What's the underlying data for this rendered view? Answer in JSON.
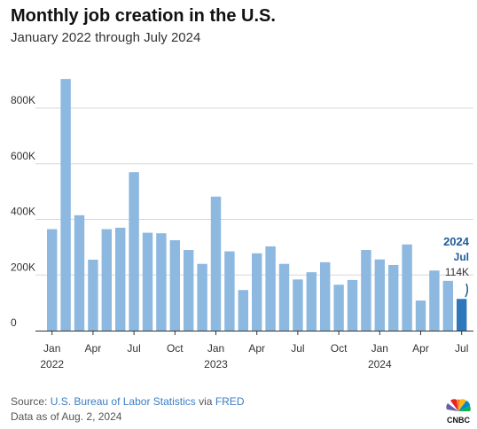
{
  "header": {
    "title": "Monthly job creation in the U.S.",
    "subtitle": "January 2022 through July 2024"
  },
  "chart_data": {
    "type": "bar",
    "title": "Monthly job creation in the U.S.",
    "subtitle": "January 2022 through July 2024",
    "xlabel": "",
    "ylabel": "",
    "ylim": [
      0,
      950000
    ],
    "y_ticks": [
      0,
      200000,
      400000,
      600000,
      800000
    ],
    "y_tick_labels": [
      "0",
      "200K",
      "400K",
      "600K",
      "800K"
    ],
    "grid": true,
    "categories": [
      "2022-01",
      "2022-02",
      "2022-03",
      "2022-04",
      "2022-05",
      "2022-06",
      "2022-07",
      "2022-08",
      "2022-09",
      "2022-10",
      "2022-11",
      "2022-12",
      "2023-01",
      "2023-02",
      "2023-03",
      "2023-04",
      "2023-05",
      "2023-06",
      "2023-07",
      "2023-08",
      "2023-09",
      "2023-10",
      "2023-11",
      "2023-12",
      "2024-01",
      "2024-02",
      "2024-03",
      "2024-04",
      "2024-05",
      "2024-06",
      "2024-07"
    ],
    "values": [
      365000,
      905000,
      415000,
      255000,
      365000,
      370000,
      570000,
      352000,
      350000,
      325000,
      290000,
      240000,
      482000,
      285000,
      146000,
      278000,
      303000,
      240000,
      184000,
      210000,
      246000,
      165000,
      182000,
      290000,
      256000,
      236000,
      310000,
      108000,
      216000,
      179000,
      114000
    ],
    "x_tick_labels": [
      {
        "index": 0,
        "label": "Jan",
        "year": "2022"
      },
      {
        "index": 3,
        "label": "Apr"
      },
      {
        "index": 6,
        "label": "Jul"
      },
      {
        "index": 9,
        "label": "Oct"
      },
      {
        "index": 12,
        "label": "Jan",
        "year": "2023"
      },
      {
        "index": 15,
        "label": "Apr"
      },
      {
        "index": 18,
        "label": "Jul"
      },
      {
        "index": 21,
        "label": "Oct"
      },
      {
        "index": 24,
        "label": "Jan",
        "year": "2024"
      },
      {
        "index": 27,
        "label": "Apr"
      },
      {
        "index": 30,
        "label": "Jul"
      }
    ],
    "annotation": {
      "index": 30,
      "year": "2024",
      "month": "Jul",
      "value_label": "114K"
    },
    "colors": {
      "bar": "#8db8e0",
      "highlight": "#2f77bd",
      "grid": "#d8d8d8",
      "axis": "#333333"
    }
  },
  "footer": {
    "source_prefix": "Source: ",
    "source_link1": "U.S. Bureau of Labor Statistics",
    "source_via": " via ",
    "source_link2": "FRED",
    "date_note": "Data as of Aug. 2, 2024"
  },
  "logo": {
    "icon": "cnbc-peacock-icon",
    "text": "CNBC"
  }
}
